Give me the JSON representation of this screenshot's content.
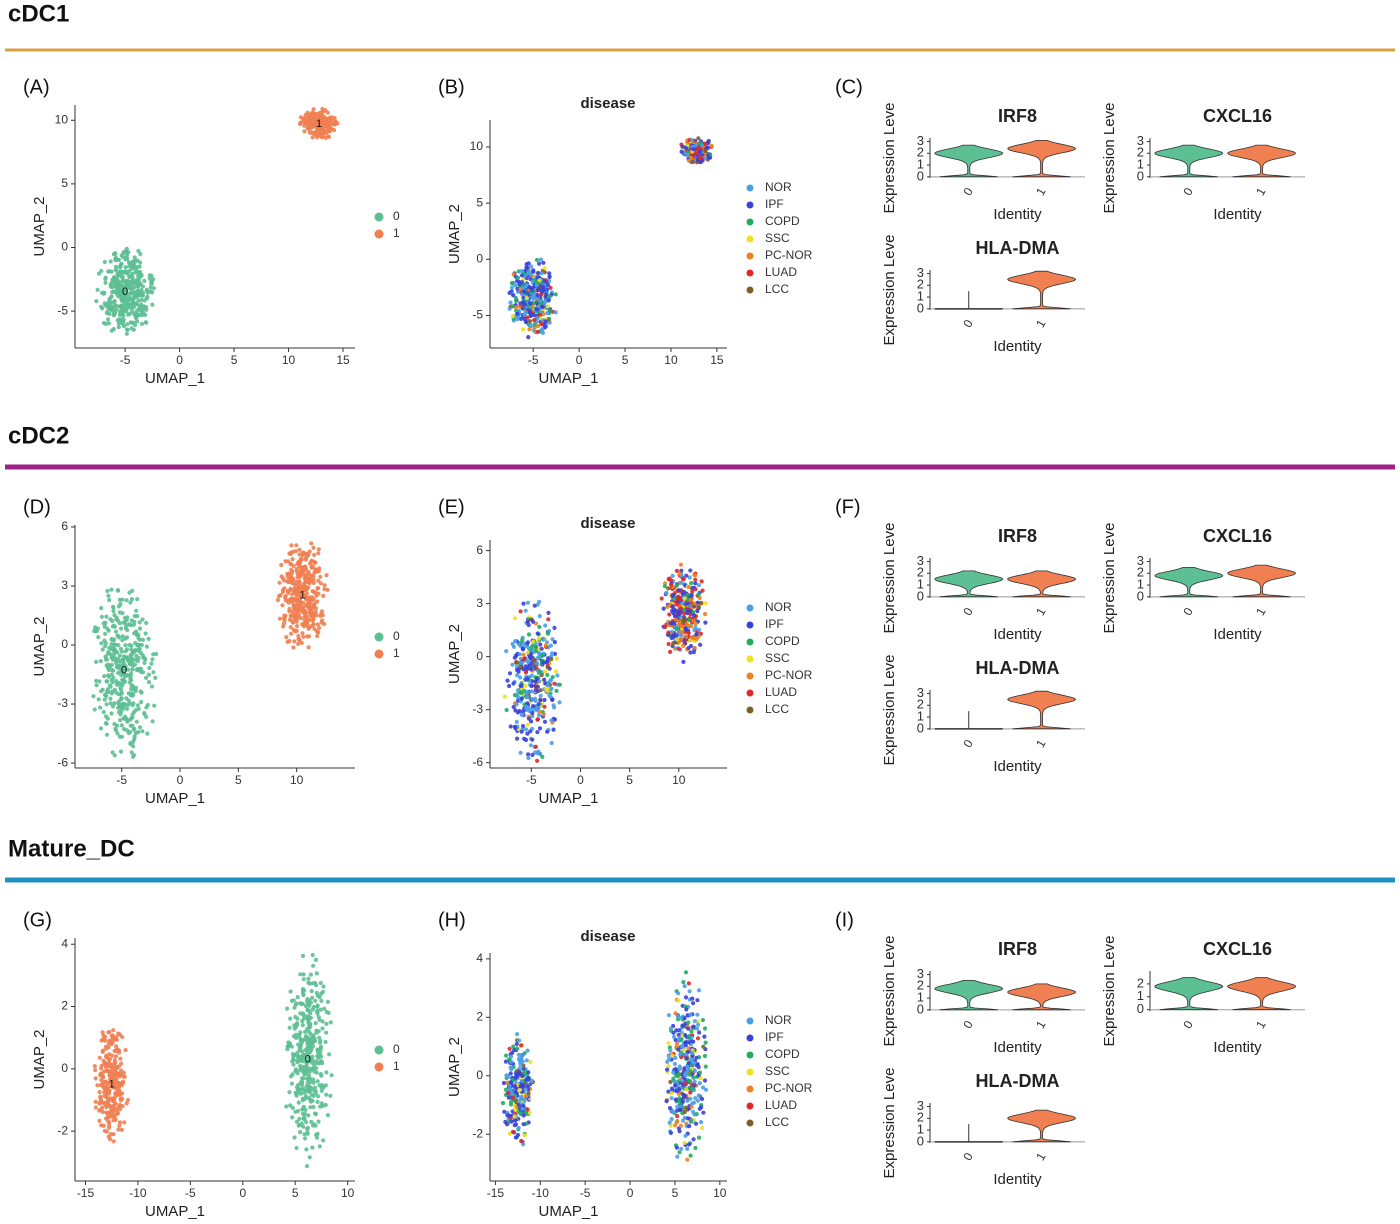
{
  "identities": [
    {
      "name": "0",
      "color": "#5dbf94"
    },
    {
      "name": "1",
      "color": "#f07f52"
    }
  ],
  "disease_legend": [
    {
      "name": "NOR",
      "color": "#4aa0e8"
    },
    {
      "name": "IPF",
      "color": "#3a40d8"
    },
    {
      "name": "COPD",
      "color": "#1fae5e"
    },
    {
      "name": "SSC",
      "color": "#efe020"
    },
    {
      "name": "PC-NOR",
      "color": "#f08020"
    },
    {
      "name": "LUAD",
      "color": "#e02828"
    },
    {
      "name": "LCC",
      "color": "#7d6028"
    }
  ],
  "sections": [
    {
      "title": "cDC1",
      "rule_color": "#d9a040",
      "umap": {
        "label": "(A)",
        "xlabel": "UMAP_1",
        "ylabel": "UMAP_2",
        "xlim": [
          -9.6,
          16.1
        ],
        "ylim": [
          -7.9,
          11.2
        ],
        "xticks": [
          -5,
          0,
          5,
          10,
          15
        ],
        "yticks": [
          -5,
          0,
          5,
          10
        ],
        "clusters": [
          {
            "name": "0",
            "center": [
              -5,
              -3.5
            ],
            "spread": [
              2.2,
              3.0
            ]
          },
          {
            "name": "1",
            "center": [
              12.8,
              9.7
            ],
            "spread": [
              1.5,
              1.0
            ]
          }
        ]
      },
      "disease": {
        "label": "(B)",
        "title": "disease",
        "xlabel": "UMAP_1",
        "ylabel": "UMAP_2",
        "xlim": [
          -9.7,
          16.1
        ],
        "ylim": [
          -7.9,
          12.4
        ],
        "xticks": [
          -5,
          0,
          5,
          10,
          15
        ],
        "yticks": [
          -5,
          0,
          5,
          10
        ]
      },
      "violins": {
        "label": "(C)",
        "genes": [
          {
            "name": "IRF8",
            "ylabel": "Expression Leve",
            "xlabel": "Identity",
            "ylim": [
              -0.1,
              3.3
            ],
            "yticks": [
              0,
              1,
              2,
              3
            ],
            "peaks": [
              2,
              2.4
            ]
          },
          {
            "name": "CXCL16",
            "ylabel": "Expression Leve",
            "xlabel": "Identity",
            "ylim": [
              -0.1,
              3.3
            ],
            "yticks": [
              0,
              1,
              2,
              3
            ],
            "peaks": [
              2,
              2
            ]
          },
          {
            "name": "HLA-DMA",
            "ylabel": "Expression Leve",
            "xlabel": "Identity",
            "ylim": [
              -0.1,
              3.3
            ],
            "yticks": [
              0,
              1,
              2,
              3
            ],
            "peaks": [
              0,
              2.5
            ]
          }
        ]
      }
    },
    {
      "title": "cDC2",
      "rule_color": "#a0208a",
      "umap": {
        "label": "(D)",
        "xlabel": "UMAP_1",
        "ylabel": "UMAP_2",
        "xlim": [
          -9.0,
          15.0
        ],
        "ylim": [
          -6.25,
          6.1
        ],
        "xticks": [
          -5,
          0,
          5,
          10
        ],
        "yticks": [
          -6,
          -3,
          0,
          3,
          6
        ],
        "clusters": [
          {
            "name": "0",
            "center": [
              -4.8,
              -1.3
            ],
            "spread": [
              2.4,
              3.8
            ]
          },
          {
            "name": "1",
            "center": [
              10.5,
              2.5
            ],
            "spread": [
              1.9,
              2.4
            ]
          }
        ]
      },
      "disease": {
        "label": "(E)",
        "title": "disease",
        "xlabel": "UMAP_1",
        "ylabel": "UMAP_2",
        "xlim": [
          -9.2,
          14.9
        ],
        "ylim": [
          -6.3,
          6.6
        ],
        "xticks": [
          -5,
          0,
          5,
          10
        ],
        "yticks": [
          -6,
          -3,
          0,
          3,
          6
        ]
      },
      "violins": {
        "label": "(F)",
        "genes": [
          {
            "name": "IRF8",
            "ylabel": "Expression Leve",
            "xlabel": "Identity",
            "ylim": [
              -0.1,
              3.3
            ],
            "yticks": [
              0,
              1,
              2,
              3
            ],
            "peaks": [
              1.5,
              1.5
            ]
          },
          {
            "name": "CXCL16",
            "ylabel": "Expression Leve",
            "xlabel": "Identity",
            "ylim": [
              -0.1,
              3.3
            ],
            "yticks": [
              0,
              1,
              2,
              3
            ],
            "peaks": [
              1.8,
              2
            ]
          },
          {
            "name": "HLA-DMA",
            "ylabel": "Expression Leve",
            "xlabel": "Identity",
            "ylim": [
              -0.1,
              3.3
            ],
            "yticks": [
              0,
              1,
              2,
              3
            ],
            "peaks": [
              0,
              2.5
            ]
          }
        ]
      }
    },
    {
      "title": "Mature_DC",
      "rule_color": "#2090c0",
      "umap": {
        "label": "(G)",
        "xlabel": "UMAP_1",
        "ylabel": "UMAP_2",
        "xlim": [
          -16,
          10.7
        ],
        "ylim": [
          -3.6,
          4.2
        ],
        "xticks": [
          -15,
          -10,
          -5,
          0,
          5,
          10
        ],
        "yticks": [
          -2,
          0,
          2,
          4
        ],
        "clusters": [
          {
            "name": "1",
            "center": [
              -12.5,
              -0.5
            ],
            "spread": [
              1.4,
              1.6
            ]
          },
          {
            "name": "0",
            "center": [
              6.2,
              0.3
            ],
            "spread": [
              1.9,
              2.8
            ]
          }
        ]
      },
      "disease": {
        "label": "(H)",
        "title": "disease",
        "xlabel": "UMAP_1",
        "ylabel": "UMAP_2",
        "xlim": [
          -15.6,
          10.8
        ],
        "ylim": [
          -3.6,
          4.2
        ],
        "xticks": [
          -15,
          -10,
          -5,
          0,
          5,
          10
        ],
        "yticks": [
          -2,
          0,
          2,
          4
        ]
      },
      "violins": {
        "label": "(I)",
        "genes": [
          {
            "name": "IRF8",
            "ylabel": "Expression Leve",
            "xlabel": "Identity",
            "ylim": [
              -0.1,
              3.3
            ],
            "yticks": [
              0,
              1,
              2,
              3
            ],
            "peaks": [
              1.8,
              1.5
            ]
          },
          {
            "name": "CXCL16",
            "ylabel": "Expression Leve",
            "xlabel": "Identity",
            "ylim": [
              -0.1,
              3.0
            ],
            "yticks": [
              0,
              1,
              2
            ],
            "peaks": [
              1.8,
              1.8
            ]
          },
          {
            "name": "HLA-DMA",
            "ylabel": "Expression Leve",
            "xlabel": "Identity",
            "ylim": [
              -0.1,
              3.3
            ],
            "yticks": [
              0,
              1,
              2,
              3
            ],
            "peaks": [
              0,
              2
            ]
          }
        ]
      }
    }
  ]
}
